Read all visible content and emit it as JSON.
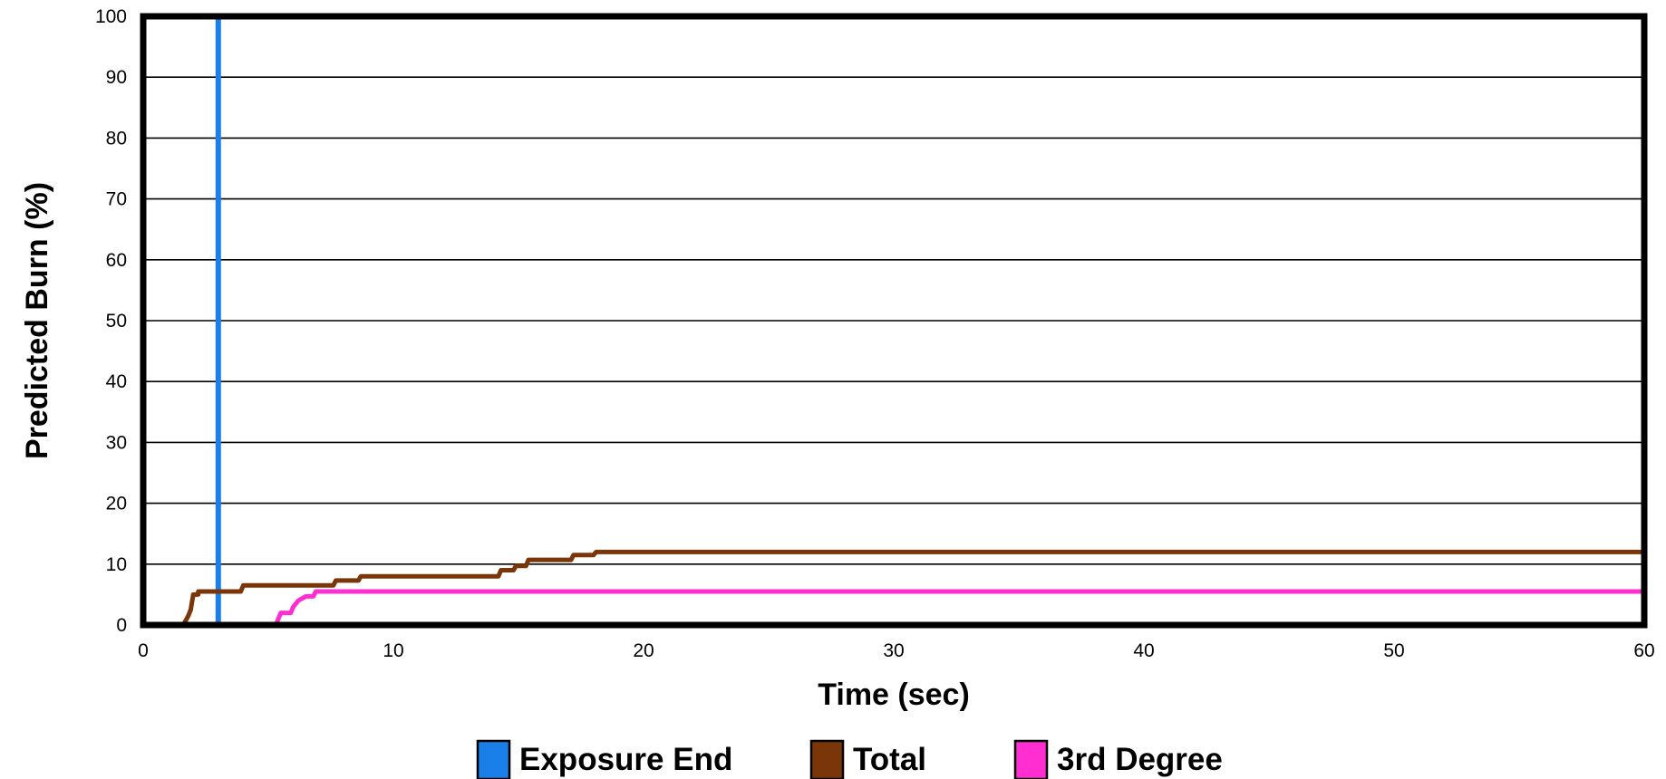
{
  "chart_data": {
    "type": "line",
    "xlabel": "Time (sec)",
    "ylabel": "Predicted Burn (%)",
    "xlim": [
      0,
      60
    ],
    "ylim": [
      0,
      100
    ],
    "x_ticks": [
      0,
      10,
      20,
      30,
      40,
      50,
      60
    ],
    "y_ticks": [
      0,
      10,
      20,
      30,
      40,
      50,
      60,
      70,
      80,
      90,
      100
    ],
    "grid": "horizontal",
    "legend_position": "bottom",
    "series": [
      {
        "name": "Exposure End",
        "color": "#1a7fe8",
        "points": [
          [
            3.0,
            100
          ],
          [
            3.0,
            0
          ]
        ]
      },
      {
        "name": "Total",
        "color": "#7a3508",
        "points": [
          [
            0,
            0
          ],
          [
            1.6,
            0
          ],
          [
            1.8,
            1.5
          ],
          [
            1.9,
            2.5
          ],
          [
            2.0,
            5
          ],
          [
            2.2,
            5
          ],
          [
            2.2,
            5.5
          ],
          [
            3.9,
            5.5
          ],
          [
            4.0,
            6.5
          ],
          [
            7.6,
            6.5
          ],
          [
            7.7,
            7.3
          ],
          [
            8.6,
            7.3
          ],
          [
            8.7,
            8.0
          ],
          [
            14.2,
            8.0
          ],
          [
            14.3,
            9.0
          ],
          [
            14.8,
            9.0
          ],
          [
            14.9,
            9.7
          ],
          [
            15.3,
            9.7
          ],
          [
            15.4,
            10.7
          ],
          [
            17.1,
            10.7
          ],
          [
            17.2,
            11.5
          ],
          [
            18.0,
            11.5
          ],
          [
            18.1,
            12.0
          ],
          [
            60,
            12.0
          ]
        ]
      },
      {
        "name": "3rd Degree",
        "color": "#ff2ed0",
        "points": [
          [
            5.3,
            0
          ],
          [
            5.4,
            1.0
          ],
          [
            5.5,
            2.0
          ],
          [
            5.9,
            2.0
          ],
          [
            6.0,
            3.0
          ],
          [
            6.2,
            4.0
          ],
          [
            6.5,
            4.7
          ],
          [
            6.8,
            4.7
          ],
          [
            6.9,
            5.5
          ],
          [
            60,
            5.5
          ]
        ]
      }
    ]
  }
}
